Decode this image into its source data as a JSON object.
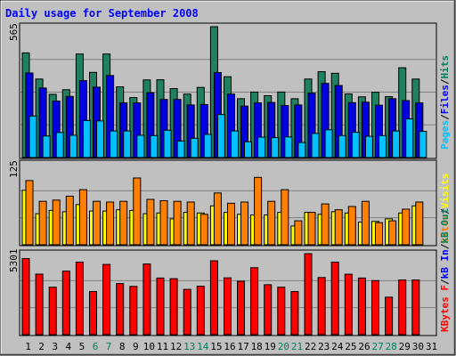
{
  "chart_data": {
    "type": "bar",
    "title": "Daily usage for September 2008",
    "categories": [
      "1",
      "2",
      "3",
      "4",
      "5",
      "6",
      "7",
      "8",
      "9",
      "10",
      "11",
      "12",
      "13",
      "14",
      "15",
      "16",
      "17",
      "18",
      "19",
      "20",
      "21",
      "22",
      "23",
      "24",
      "25",
      "26",
      "27",
      "28",
      "29",
      "30",
      "31"
    ],
    "weekend_days": [
      "6",
      "7",
      "13",
      "14",
      "20",
      "21",
      "27",
      "28"
    ],
    "panels": [
      {
        "name": "hits-files-pages",
        "ymax_label": "565",
        "ymax": 565,
        "legend": [
          {
            "name": "Hits",
            "color": "#00805c"
          },
          {
            "name": "Files",
            "color": "#0000ff"
          },
          {
            "name": "Pages",
            "color": "#00c0ff"
          }
        ],
        "series": [
          {
            "name": "Hits",
            "color": "#208060",
            "values": [
              452,
              339,
              273,
              293,
              447,
              368,
              447,
              305,
              259,
              335,
              336,
              298,
              274,
              303,
              565,
              349,
              254,
              283,
              267,
              283,
              254,
              339,
              371,
              364,
              275,
              262,
              282,
              263,
              388,
              339,
              0
            ]
          },
          {
            "name": "Files",
            "color": "#0000e0",
            "values": [
              365,
              300,
              244,
              264,
              332,
              304,
              354,
              236,
              236,
              280,
              251,
              251,
              227,
              229,
              367,
              274,
              222,
              236,
              238,
              225,
              227,
              278,
              320,
              311,
              237,
              239,
              226,
              254,
              246,
              236,
              0
            ]
          },
          {
            "name": "Pages",
            "color": "#00c0ff",
            "values": [
              179,
              93,
              108,
              96,
              160,
              158,
              115,
              115,
              96,
              95,
              118,
              71,
              83,
              100,
              186,
              115,
              68,
              88,
              86,
              89,
              65,
              104,
              120,
              95,
              109,
              92,
              95,
              115,
              167,
              113,
              0
            ]
          }
        ]
      },
      {
        "name": "visits-sites",
        "ymax_label": "125",
        "ymax": 125,
        "legend": [
          {
            "name": "Visits",
            "color": "#ffff00"
          },
          {
            "name": "Sites",
            "color": "#ff8000"
          }
        ],
        "series": [
          {
            "name": "Visits",
            "color": "#ffff00",
            "values": [
              84,
              48,
              53,
              51,
              62,
              52,
              52,
              54,
              53,
              48,
              49,
              40,
              50,
              49,
              60,
              50,
              47,
              46,
              46,
              50,
              29,
              50,
              47,
              51,
              49,
              35,
              36,
              40,
              49,
              60,
              0
            ]
          },
          {
            "name": "Sites",
            "color": "#ff8000",
            "values": [
              99,
              67,
              69,
              75,
              85,
              67,
              66,
              67,
              103,
              70,
              68,
              67,
              66,
              47,
              80,
              64,
              66,
              104,
              67,
              85,
              37,
              50,
              63,
              54,
              59,
              67,
              34,
              37,
              55,
              66,
              0
            ]
          }
        ]
      },
      {
        "name": "kbf-kbin-kbout",
        "ymax_label": "5301",
        "ymax": 5301,
        "legend": [
          {
            "name": "KBytes F",
            "color": "#ff0000"
          },
          {
            "name": "kB In",
            "color": "#0000ff"
          },
          {
            "name": "kB Out",
            "color": "#00805c"
          }
        ],
        "series": [
          {
            "name": "KBytes F",
            "color": "#ff0000",
            "values": [
              4980,
              3964,
              3106,
              4159,
              4746,
              2821,
              4595,
              3342,
              3156,
              4624,
              3705,
              3664,
              2967,
              3169,
              4834,
              3717,
              3494,
              4381,
              3266,
              3106,
              2821,
              5301,
              3740,
              4746,
              3955,
              3706,
              3536,
              2451,
              3575,
              3575,
              0
            ]
          }
        ]
      }
    ]
  }
}
